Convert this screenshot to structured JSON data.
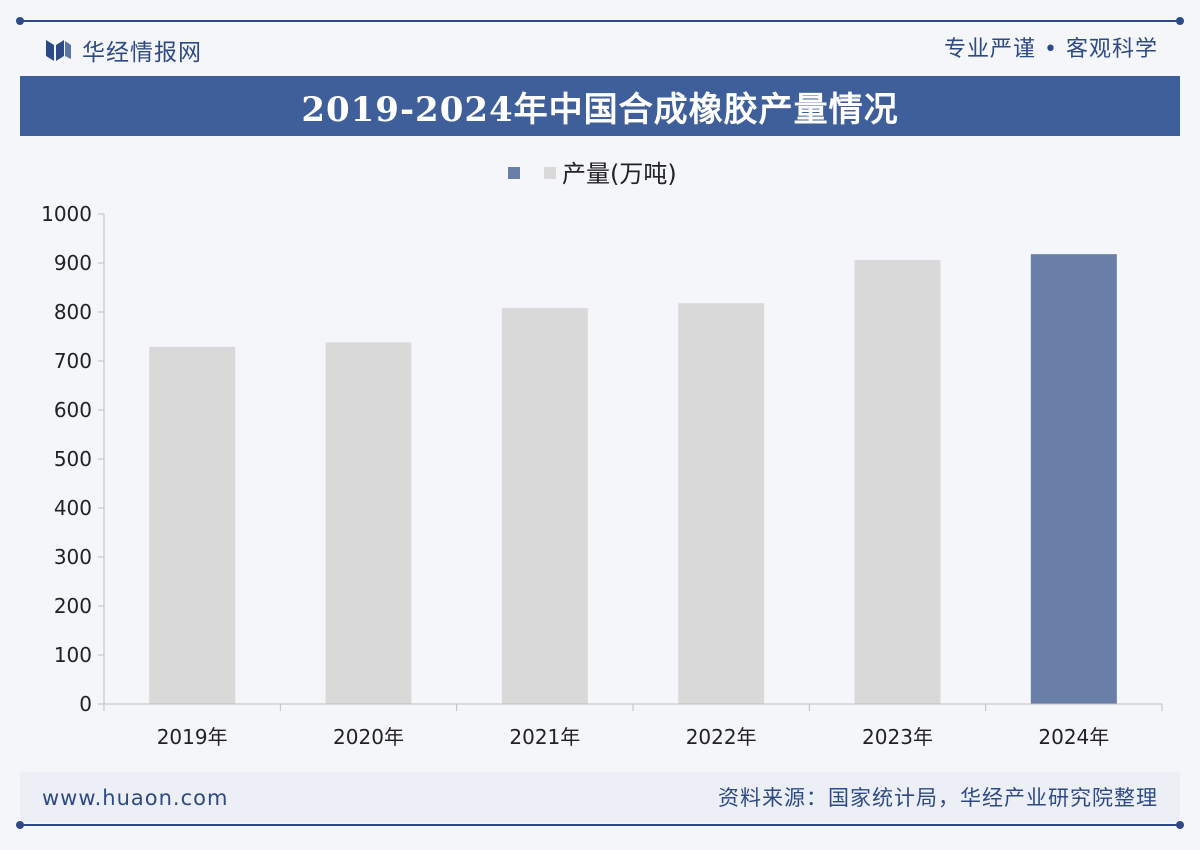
{
  "header": {
    "brand": "华经情报网",
    "slogan": "专业严谨 • 客观科学"
  },
  "title": "2019-2024年中国合成橡胶产量情况",
  "colors": {
    "accent": "#3e5f9a",
    "highlight_bar": "#6a7fa8",
    "normal_bar": "#d9d9d9",
    "axis": "#bfbfbf"
  },
  "chart_data": {
    "type": "bar",
    "categories": [
      "2019年",
      "2020年",
      "2021年",
      "2022年",
      "2023年",
      "2024年"
    ],
    "series": [
      {
        "name": "产量(万吨)",
        "values": [
          729,
          738,
          808,
          818,
          906,
          918
        ]
      }
    ],
    "highlight_index": 5,
    "ylim": [
      0,
      1000
    ],
    "yticks": [
      0,
      100,
      200,
      300,
      400,
      500,
      600,
      700,
      800,
      900,
      1000
    ],
    "legend_position": "top-center",
    "grid": false
  },
  "footer": {
    "url": "www.huaon.com",
    "source": "资料来源：国家统计局，华经产业研究院整理"
  }
}
